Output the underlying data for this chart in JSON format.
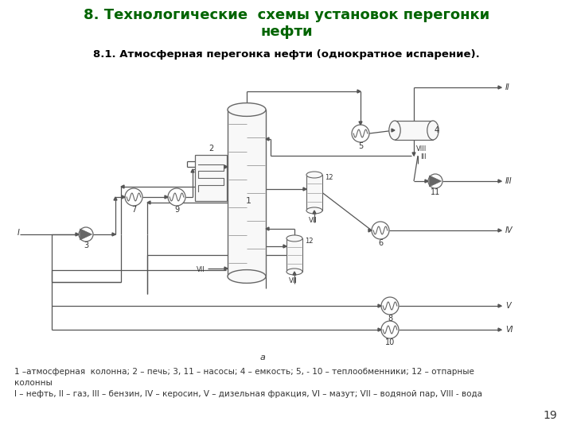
{
  "title": "8. Технологические  схемы установок перегонки\nнефти",
  "subtitle": "8.1. Атмосферная перегонка нефти (однократное испарение).",
  "title_color": "#006400",
  "subtitle_color": "#000000",
  "footer_line1": "1 –атмосферная  колонна; 2 – печь; 3, 11 – насосы; 4 – емкость; 5, - 10 – теплообменники; 12 – отпарные",
  "footer_line2": "колонны",
  "footer_line3": "I – нефть, II – газ, III – бензин, IV – керосин, V – дизельная фракция, VI – мазут; VII – водяной пар, VIII - вода",
  "page_number": "19",
  "bg_color": "#ffffff",
  "diagram_color": "#666666",
  "line_color": "#555555"
}
